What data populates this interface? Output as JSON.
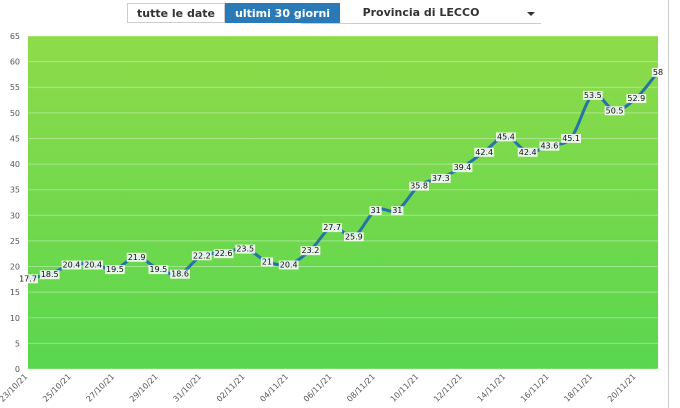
{
  "ui": {
    "buttons": [
      "tutte le date",
      "ultimi 30 giorni"
    ],
    "dropdown": "Provincia di LECCO"
  },
  "chart_data": {
    "type": "line",
    "categories": [
      "23/10/21",
      null,
      "25/10/21",
      null,
      "27/10/21",
      null,
      "29/10/21",
      null,
      "31/10/21",
      null,
      "02/11/21",
      null,
      "04/11/21",
      null,
      "06/11/21",
      null,
      "08/11/21",
      null,
      "10/11/21",
      null,
      "12/11/21",
      null,
      "14/11/21",
      null,
      "16/11/21",
      null,
      "18/11/21",
      null,
      "20/11/21",
      null
    ],
    "values": [
      17.7,
      18.5,
      20.4,
      20.4,
      19.5,
      21.9,
      19.5,
      18.6,
      22.2,
      22.6,
      23.5,
      21,
      20.4,
      23.2,
      27.7,
      25.9,
      31,
      31,
      35.8,
      37.3,
      39.4,
      42.4,
      45.4,
      42.4,
      43.6,
      45.1,
      53.5,
      50.5,
      52.9,
      58
    ],
    "color": "#2673a6",
    "ylim": [
      0,
      65
    ],
    "yticks": [
      0,
      5,
      10,
      15,
      20,
      25,
      30,
      35,
      40,
      45,
      50,
      55,
      60,
      65
    ],
    "grid": true
  }
}
